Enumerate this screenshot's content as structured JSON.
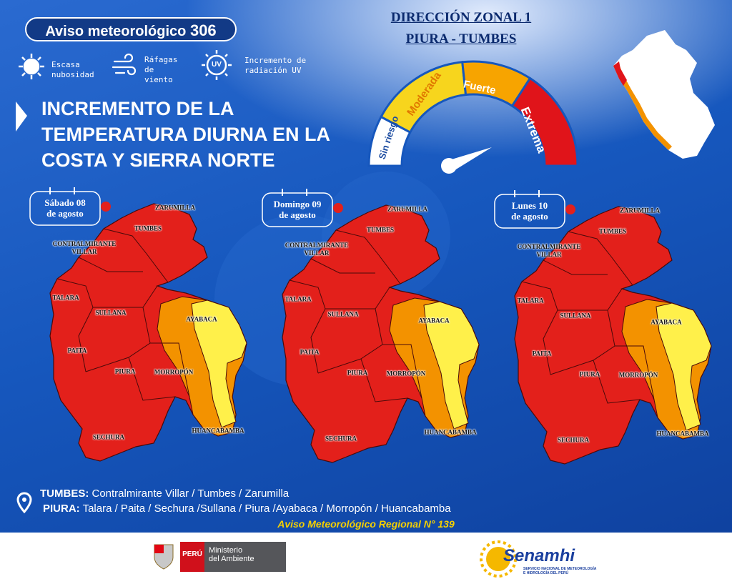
{
  "header": {
    "badge_title": "Aviso meteorológico",
    "badge_number": "306"
  },
  "legend": [
    {
      "label_lines": [
        "Escasa",
        "nubosidad"
      ]
    },
    {
      "label_lines": [
        "Ráfagas",
        "de",
        "viento"
      ]
    },
    {
      "label_lines": [
        "Incremento de",
        "radiación UV"
      ]
    }
  ],
  "uv_icon": "UV",
  "headline": {
    "lines": [
      "INCREMENTO DE LA",
      "TEMPERATURA DIURNA EN LA",
      "COSTA Y SIERRA NORTE"
    ]
  },
  "zone": {
    "title": "DIRECCIÓN ZONAL 1",
    "subtitle": "PIURA - TUMBES"
  },
  "gauge": {
    "levels": [
      "Sin riesgo",
      "Moderada",
      "Fuerte",
      "Extrema"
    ]
  },
  "provinces": [
    "ZARUMILLA",
    "TUMBES",
    "CONTRALMIRANTE VILLAR",
    "TALARA",
    "SULLANA",
    "PAITA",
    "PIURA",
    "AYABACA",
    "MORROPÓN",
    "HUANCABAMBA",
    "SECHURA"
  ],
  "maps": [
    {
      "date_lines": [
        "Sábado 08",
        "de agosto"
      ]
    },
    {
      "date_lines": [
        "Domingo 09",
        "de agosto"
      ]
    },
    {
      "date_lines": [
        "Lunes 10",
        "de agosto"
      ]
    }
  ],
  "footer": {
    "tumbes_label": "TUMBES:",
    "tumbes_list": "Contralmirante Villar / Tumbes / Zarumilla",
    "piura_label": "PIURA:",
    "piura_list": "Talara / Paita / Sechura /Sullana / Piura /Ayabaca / Morropón / Huancabamba",
    "notice": "Aviso Meteorológico Regional N° 139"
  },
  "logos": {
    "peru": "PERÚ",
    "ministry_lines": [
      "Ministerio",
      "del Ambiente"
    ],
    "senamhi": "Senamhi",
    "senamhi_sub_lines": [
      "SERVICIO NACIONAL DE METEOROLOGÍA",
      "E HIDROLOGÍA DEL PERÚ"
    ]
  }
}
